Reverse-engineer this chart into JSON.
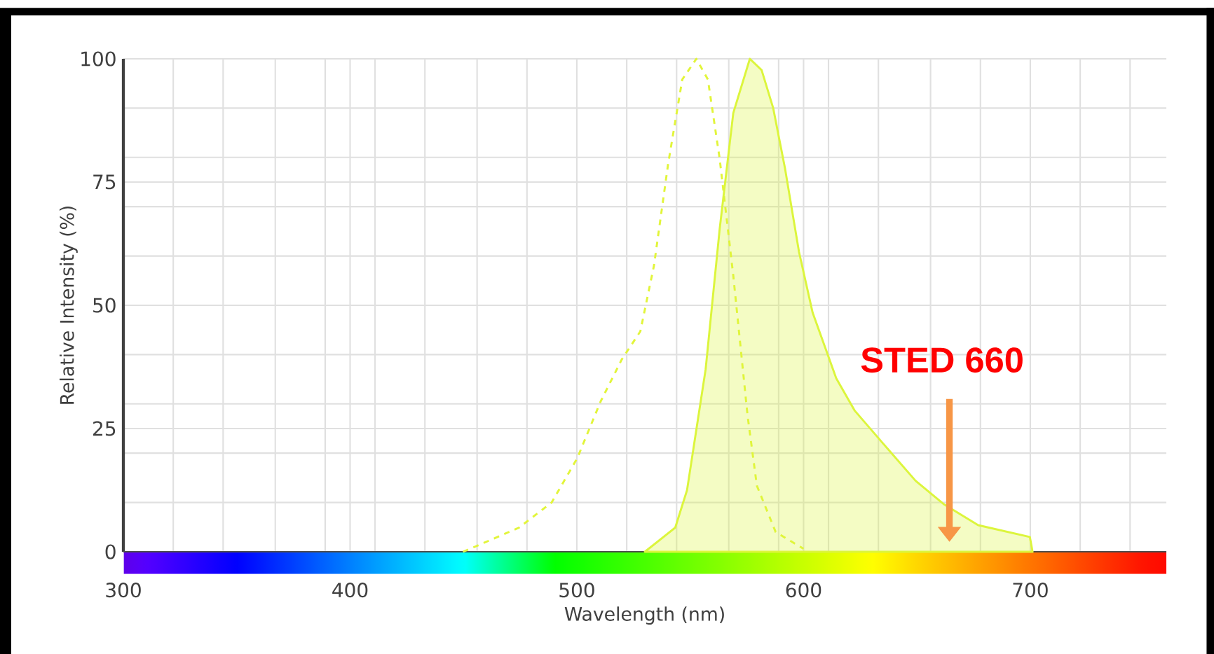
{
  "chart_data": {
    "type": "line",
    "xlabel": "Wavelength (nm)",
    "ylabel": "Relative Intensity (%)",
    "series": [
      {
        "line_style": "dashed",
        "color": "#e2f53a",
        "x": [
          449.8,
          458,
          474.5,
          488.9,
          500.2,
          510.5,
          519.8,
          528,
          534,
          540.3,
          546.5,
          552.7,
          557.8,
          563,
          569,
          575.3,
          579.4,
          587.7,
          600
        ],
        "values": [
          0,
          1.6,
          4.9,
          10,
          19,
          30.5,
          39,
          44.7,
          58,
          78.8,
          95.8,
          100,
          95.8,
          79.7,
          56,
          27.6,
          13.4,
          4,
          0.6
        ]
      },
      {
        "type": "area",
        "color": "#dcf53c",
        "x": [
          530,
          543.4,
          548.6,
          556.8,
          563,
          569,
          576.3,
          581.5,
          586.6,
          591.8,
          598,
          604,
          614.4,
          622.6,
          635,
          649.4,
          661.7,
          677,
          699.8,
          701
        ],
        "values": [
          0,
          4.9,
          12.5,
          37,
          65.5,
          89,
          100,
          97.7,
          90,
          77.8,
          60.8,
          48.5,
          35.2,
          28.6,
          22,
          14.4,
          9.7,
          5.4,
          3,
          0
        ]
      }
    ],
    "xlim": [
      300,
      760
    ],
    "xticks": [
      300,
      {
        "value": 322,
        "label": null
      },
      {
        "value": 344,
        "label": null
      },
      {
        "value": 367,
        "label": null
      },
      {
        "value": 389,
        "label": null
      },
      400,
      {
        "value": 411,
        "label": null
      },
      {
        "value": 433,
        "label": null
      },
      {
        "value": 456,
        "label": null
      },
      {
        "value": 478,
        "label": null
      },
      500,
      {
        "value": 522,
        "label": null
      },
      {
        "value": 544,
        "label": null
      },
      {
        "value": 567,
        "label": null
      },
      {
        "value": 589,
        "label": null
      },
      600,
      {
        "value": 611,
        "label": null
      },
      {
        "value": 633,
        "label": null
      },
      {
        "value": 656,
        "label": null
      },
      {
        "value": 678,
        "label": null
      },
      700,
      {
        "value": 722,
        "label": null
      },
      {
        "value": 744,
        "label": null
      }
    ],
    "ylim": [
      0,
      100
    ],
    "yticks": [
      0,
      {
        "value": 10,
        "label": null
      },
      {
        "value": 20,
        "label": null
      },
      25,
      {
        "value": 30,
        "label": null
      },
      {
        "value": 40,
        "label": null
      },
      50,
      {
        "value": 60,
        "label": null
      },
      {
        "value": 70,
        "label": null
      },
      75,
      {
        "value": 80,
        "label": null
      },
      {
        "value": 90,
        "label": null
      },
      100
    ],
    "grid": true,
    "annotations": [
      "STED 660"
    ]
  }
}
